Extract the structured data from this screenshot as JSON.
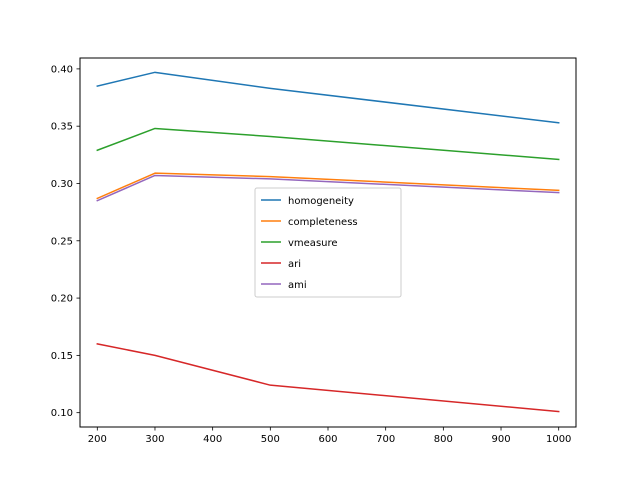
{
  "chart_data": {
    "type": "line",
    "title": "",
    "xlabel": "",
    "ylabel": "",
    "x": [
      200,
      300,
      500,
      1000
    ],
    "xlim": [
      170,
      1030
    ],
    "ylim": [
      0.0875,
      0.4095
    ],
    "xticks": [
      200,
      300,
      400,
      500,
      600,
      700,
      800,
      900,
      1000
    ],
    "yticks": [
      0.1,
      0.15,
      0.2,
      0.25,
      0.3,
      0.35,
      0.4
    ],
    "xtick_labels": [
      "200",
      "300",
      "400",
      "500",
      "600",
      "700",
      "800",
      "900",
      "1000"
    ],
    "ytick_labels": [
      "0.10",
      "0.15",
      "0.20",
      "0.25",
      "0.30",
      "0.35",
      "0.40"
    ],
    "grid": false,
    "legend_position": "center",
    "series": [
      {
        "name": "homogeneity",
        "color": "#1f77b4",
        "values": [
          0.385,
          0.397,
          0.383,
          0.353
        ]
      },
      {
        "name": "completeness",
        "color": "#ff7f0e",
        "values": [
          0.287,
          0.309,
          0.306,
          0.294
        ]
      },
      {
        "name": "vmeasure",
        "color": "#2ca02c",
        "values": [
          0.329,
          0.348,
          0.341,
          0.321
        ]
      },
      {
        "name": "ari",
        "color": "#d62728",
        "values": [
          0.16,
          0.15,
          0.124,
          0.101
        ]
      },
      {
        "name": "ami",
        "color": "#9467bd",
        "values": [
          0.285,
          0.307,
          0.304,
          0.292
        ]
      }
    ]
  }
}
